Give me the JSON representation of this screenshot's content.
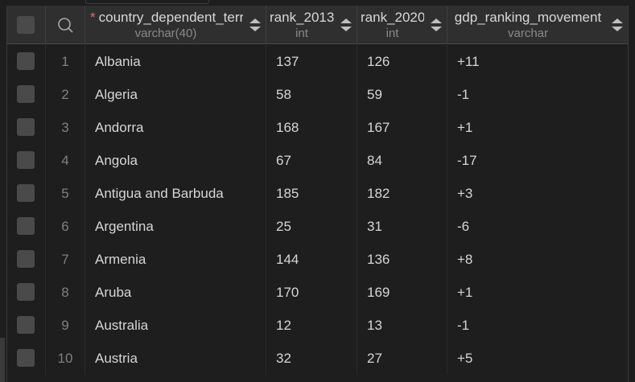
{
  "columns": [
    {
      "name": "country_dependent_terr",
      "type": "varchar(40)",
      "required": true
    },
    {
      "name": "rank_2013",
      "type": "int",
      "required": false
    },
    {
      "name": "rank_2020",
      "type": "int",
      "required": false
    },
    {
      "name": "gdp_ranking_movement",
      "type": "varchar",
      "required": false
    }
  ],
  "required_marker": "*",
  "rows": [
    {
      "n": "1",
      "country": "Albania",
      "r2013": "137",
      "r2020": "126",
      "move": "+11"
    },
    {
      "n": "2",
      "country": "Algeria",
      "r2013": "58",
      "r2020": "59",
      "move": "-1"
    },
    {
      "n": "3",
      "country": "Andorra",
      "r2013": "168",
      "r2020": "167",
      "move": "+1"
    },
    {
      "n": "4",
      "country": "Angola",
      "r2013": "67",
      "r2020": "84",
      "move": "-17"
    },
    {
      "n": "5",
      "country": "Antigua and Barbuda",
      "r2013": "185",
      "r2020": "182",
      "move": "+3"
    },
    {
      "n": "6",
      "country": "Argentina",
      "r2013": "25",
      "r2020": "31",
      "move": "-6"
    },
    {
      "n": "7",
      "country": "Armenia",
      "r2013": "144",
      "r2020": "136",
      "move": "+8"
    },
    {
      "n": "8",
      "country": "Aruba",
      "r2013": "170",
      "r2020": "169",
      "move": "+1"
    },
    {
      "n": "9",
      "country": "Australia",
      "r2013": "12",
      "r2020": "13",
      "move": "-1"
    },
    {
      "n": "10",
      "country": "Austria",
      "r2013": "32",
      "r2020": "27",
      "move": "+5"
    }
  ]
}
